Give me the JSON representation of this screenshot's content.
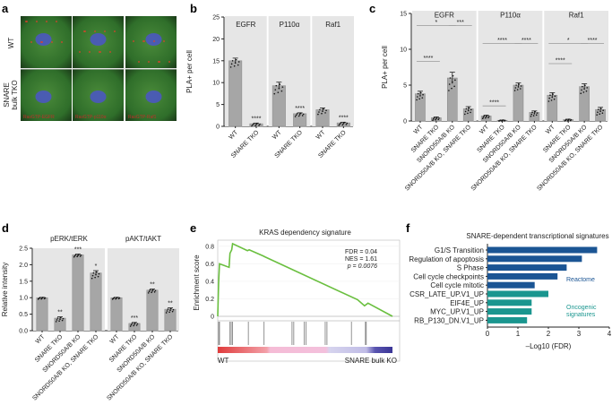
{
  "panel_labels": {
    "a": "a",
    "b": "b",
    "c": "c",
    "d": "d",
    "e": "e",
    "f": "f"
  },
  "panel_a": {
    "row_labels": [
      "WT",
      "SNARE",
      "bulk TKO"
    ],
    "image_labels": [
      "RasGTP-EGFR",
      "RasGTP-p110α",
      "RasGTP-Raf1"
    ]
  },
  "chart_data": [
    {
      "id": "b",
      "type": "bar",
      "ylabel": "PLA+ per cell",
      "ylim": [
        0,
        25
      ],
      "yticks": [
        0,
        5,
        10,
        15,
        20,
        25
      ],
      "facets": [
        {
          "name": "EGFR",
          "categories": [
            "WT",
            "SNARE TKO"
          ],
          "values": [
            15.0,
            0.6
          ],
          "errors": [
            0.6,
            0.15
          ],
          "sig": [
            "",
            "****"
          ]
        },
        {
          "name": "P110α",
          "categories": [
            "WT",
            "SNARE TKO"
          ],
          "values": [
            9.3,
            2.9
          ],
          "errors": [
            0.8,
            0.2
          ],
          "sig": [
            "",
            "****"
          ]
        },
        {
          "name": "Raf1",
          "categories": [
            "WT",
            "SNARE TKO"
          ],
          "values": [
            3.8,
            0.8
          ],
          "errors": [
            0.4,
            0.15
          ],
          "sig": [
            "",
            "****"
          ]
        }
      ]
    },
    {
      "id": "c",
      "type": "bar",
      "ylabel": "PLA+ per cell",
      "ylim": [
        0,
        15
      ],
      "yticks": [
        0,
        5,
        10,
        15
      ],
      "facets": [
        {
          "name": "EGFR",
          "categories": [
            "WT",
            "SNARE TKO",
            "SNORD50A/B KO",
            "SNORD50A/B KO, SNARE TKO"
          ],
          "values": [
            3.8,
            0.45,
            6.0,
            1.7
          ],
          "errors": [
            0.35,
            0.1,
            0.8,
            0.3
          ],
          "brackets": [
            {
              "from": 0,
              "to": 1,
              "y": 8.3,
              "label": "****"
            },
            {
              "from": 0,
              "to": 2,
              "y": 13.3,
              "label": "*"
            },
            {
              "from": 2,
              "to": 3,
              "y": 13.3,
              "label": "***"
            }
          ]
        },
        {
          "name": "P110α",
          "categories": [
            "WT",
            "SNARE TKO",
            "SNORD50A/B KO",
            "SNORD50A/B KO, SNARE TKO"
          ],
          "values": [
            0.7,
            0.1,
            5.0,
            1.2
          ],
          "errors": [
            0.1,
            0.03,
            0.3,
            0.2
          ],
          "brackets": [
            {
              "from": 0,
              "to": 1,
              "y": 2.1,
              "label": "****"
            },
            {
              "from": 0,
              "to": 2,
              "y": 10.8,
              "label": "****"
            },
            {
              "from": 2,
              "to": 3,
              "y": 10.8,
              "label": "****"
            }
          ]
        },
        {
          "name": "Raf1",
          "categories": [
            "WT",
            "SNARE TKO",
            "SNORD50A/B KO",
            "SNORD50A/B KO, SNARE TKO"
          ],
          "values": [
            3.6,
            0.2,
            4.8,
            1.6
          ],
          "errors": [
            0.35,
            0.05,
            0.4,
            0.3
          ],
          "brackets": [
            {
              "from": 0,
              "to": 1,
              "y": 8.0,
              "label": "****"
            },
            {
              "from": 0,
              "to": 2,
              "y": 10.8,
              "label": "*"
            },
            {
              "from": 2,
              "to": 3,
              "y": 10.8,
              "label": "****"
            }
          ]
        }
      ]
    },
    {
      "id": "d",
      "type": "bar",
      "ylabel": "Relative intensity",
      "ylim": [
        0,
        2.5
      ],
      "yticks": [
        "0.0",
        "0.5",
        "1.0",
        "1.5",
        "2.0",
        "2.5"
      ],
      "facets": [
        {
          "name": "pERK/tERK",
          "categories": [
            "WT",
            "SNARE TKO",
            "SNORD50A/B KO",
            "SNORD50A/B KO, SNARE TKO"
          ],
          "values": [
            1.0,
            0.38,
            2.3,
            1.75
          ],
          "errors": [
            0.01,
            0.04,
            0.02,
            0.07
          ],
          "sig": [
            "",
            "**",
            "***",
            "*"
          ]
        },
        {
          "name": "pAKT/tAKT",
          "categories": [
            "WT",
            "SNARE TKO",
            "SNORD50A/B KO",
            "SNORD50A/B KO, SNARE TKO"
          ],
          "values": [
            1.0,
            0.22,
            1.23,
            0.65
          ],
          "errors": [
            0.01,
            0.03,
            0.03,
            0.04
          ],
          "sig": [
            "",
            "***",
            "**",
            "**"
          ]
        }
      ]
    },
    {
      "id": "e",
      "type": "line",
      "title": "KRAS dependency signature",
      "ylabel": "Enrichment score",
      "ylim": [
        0,
        0.85
      ],
      "yticks": [
        "0",
        "0.2",
        "0.4",
        "0.6",
        "0.8"
      ],
      "x": [
        0,
        0.005,
        0.01,
        0.065,
        0.07,
        0.08,
        0.085,
        0.17,
        0.18,
        0.26,
        0.27,
        0.8,
        0.84,
        0.86,
        1.0
      ],
      "y": [
        0,
        0.38,
        0.6,
        0.56,
        0.72,
        0.76,
        0.83,
        0.75,
        0.76,
        0.69,
        0.68,
        0.19,
        0.12,
        0.15,
        0.0
      ],
      "hits": [
        0.0,
        0.005,
        0.065,
        0.072,
        0.08,
        0.17,
        0.26,
        0.42,
        0.43,
        0.49,
        0.5,
        0.61,
        0.62,
        0.76,
        0.84,
        0.845
      ],
      "stats": [
        "FDR = 0.04",
        "NES = 1.61",
        "p = 0.0076"
      ],
      "left_label": "WT",
      "right_label": "SNARE bulk KO",
      "line_color": "#6abf3f"
    },
    {
      "id": "f",
      "type": "bar",
      "orientation": "horizontal",
      "title": "SNARE-dependent transcriptional signatures",
      "xlabel": "–Log10 (FDR)",
      "xlim": [
        0,
        4
      ],
      "xticks": [
        "0",
        "1",
        "2",
        "3",
        "4"
      ],
      "categories": [
        "G1/S Transition",
        "Regulation of apoptosis",
        "S Phase",
        "Cell cycle checkpoints",
        "Cell cycle mitotic",
        "CSR_LATE_UP.V1_UP",
        "EIF4E_UP",
        "MYC_UP.V1_UP",
        "RB_P130_DN.V1_UP"
      ],
      "values": [
        3.6,
        3.1,
        2.6,
        2.3,
        1.55,
        2.0,
        1.45,
        1.45,
        1.3
      ],
      "groups": [
        0,
        0,
        0,
        0,
        0,
        1,
        1,
        1,
        1
      ],
      "group_labels": [
        "Reactome",
        "Oncogenic",
        "signatures"
      ],
      "group_colors": [
        "#1b5594",
        "#1a968f"
      ]
    }
  ],
  "colors": {
    "bar": "#a6a6a6",
    "panel_bg": "#e6e6e6"
  }
}
